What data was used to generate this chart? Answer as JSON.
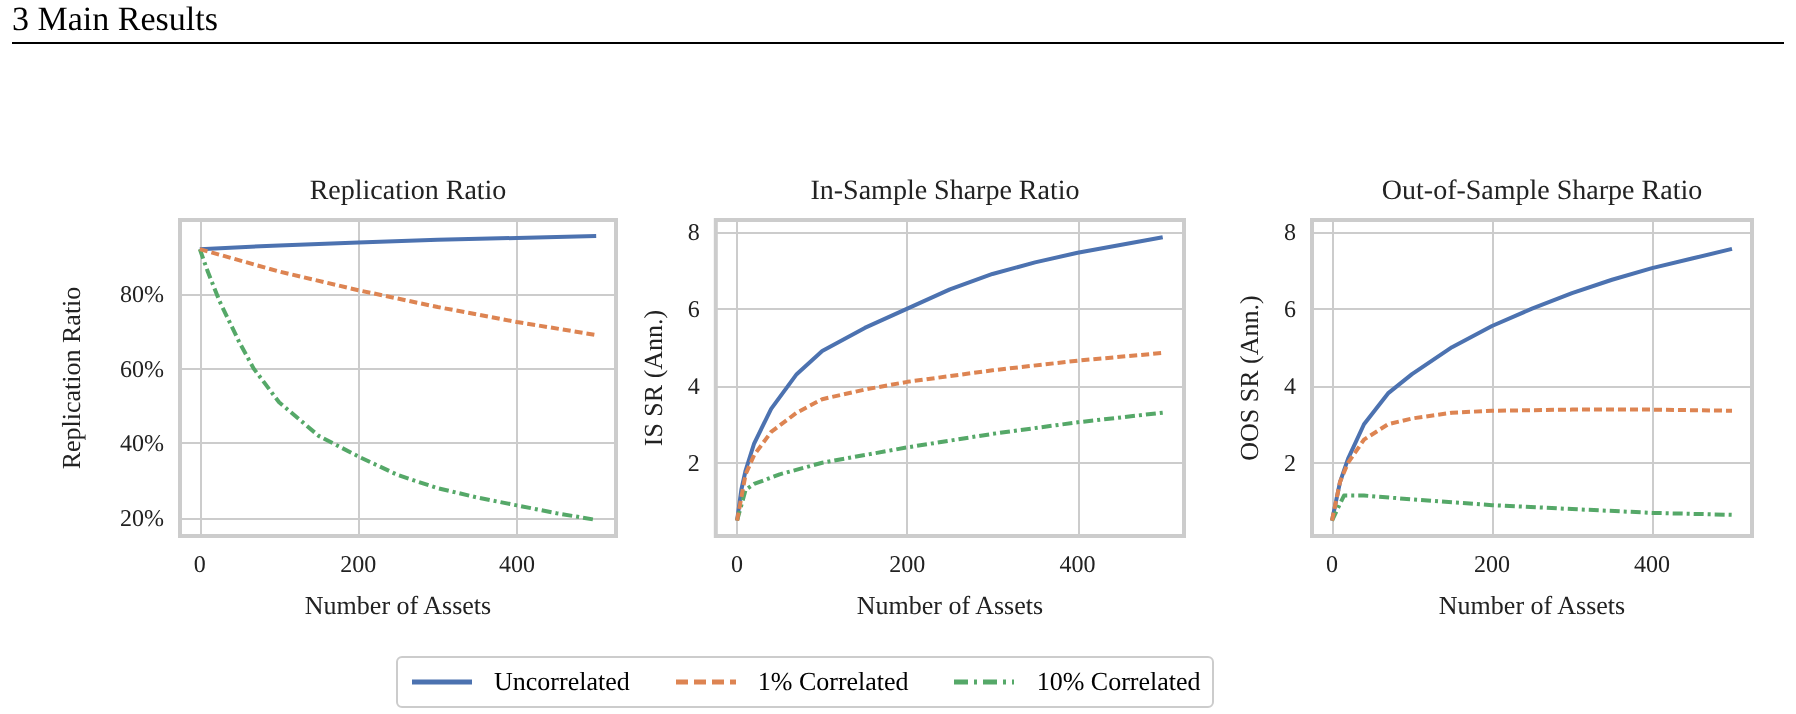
{
  "chart_data": [
    {
      "type": "line",
      "title": "Replication Ratio",
      "xlabel": "Number of Assets",
      "ylabel": "Replication Ratio",
      "annotations": [
        "3 Main Results"
      ],
      "legend": "bottom",
      "grid": true,
      "xlim": [
        -25,
        525
      ],
      "xticks": [
        0,
        200,
        400
      ],
      "ylim": [
        15.2,
        99.8
      ],
      "yticks": [
        {
          "value": 20,
          "label": "20%"
        },
        {
          "value": 40,
          "label": "40%"
        },
        {
          "value": 60,
          "label": "60%"
        },
        {
          "value": 80,
          "label": "80%"
        }
      ],
      "series": [
        {
          "name": "Uncorrelated",
          "color": "#4c72b0",
          "line_style": "solid",
          "x": [
            0,
            100,
            200,
            300,
            400,
            500
          ],
          "values": [
            92,
            93,
            93.8,
            94.5,
            95,
            95.5
          ]
        },
        {
          "name": "1% Correlated",
          "color": "#dd8452",
          "line_style": "dashed",
          "x": [
            0,
            100,
            200,
            300,
            400,
            500
          ],
          "values": [
            92,
            86,
            81,
            76.5,
            72.5,
            69
          ]
        },
        {
          "name": "10% Correlated",
          "color": "#55a868",
          "line_style": "dashdot",
          "x": [
            0,
            10,
            25,
            50,
            68,
            100,
            150,
            200,
            250,
            300,
            350,
            400,
            450,
            500
          ],
          "values": [
            92,
            86,
            78,
            67,
            60,
            51,
            42,
            36.5,
            31.5,
            28,
            25.5,
            23.4,
            21.3,
            19.5
          ]
        }
      ]
    },
    {
      "type": "line",
      "title": "In-Sample Sharpe Ratio",
      "xlabel": "Number of Assets",
      "ylabel": "IS SR (Ann.)",
      "grid": true,
      "xlim": [
        -25,
        525
      ],
      "xticks": [
        0,
        200,
        400
      ],
      "ylim": [
        0.1,
        8.3
      ],
      "yticks": [
        2,
        4,
        6,
        8
      ],
      "series": [
        {
          "color": "#4c72b0",
          "line_style": "solid",
          "x": [
            0,
            5,
            10,
            20,
            40,
            70,
            100,
            150,
            200,
            250,
            300,
            350,
            400,
            450,
            500
          ],
          "values": [
            0.5,
            1.3,
            1.8,
            2.5,
            3.4,
            4.3,
            4.9,
            5.5,
            6.0,
            6.5,
            6.9,
            7.2,
            7.45,
            7.65,
            7.85
          ]
        },
        {
          "color": "#dd8452",
          "line_style": "dashed",
          "x": [
            0,
            10,
            20,
            40,
            70,
            100,
            150,
            200,
            300,
            400,
            500
          ],
          "values": [
            0.5,
            1.7,
            2.2,
            2.8,
            3.3,
            3.65,
            3.9,
            4.1,
            4.4,
            4.65,
            4.85
          ]
        },
        {
          "color": "#55a868",
          "line_style": "dashdot",
          "x": [
            0,
            10,
            20,
            50,
            100,
            150,
            200,
            300,
            400,
            500
          ],
          "values": [
            0.5,
            1.3,
            1.45,
            1.7,
            2.0,
            2.2,
            2.4,
            2.75,
            3.05,
            3.3
          ]
        }
      ]
    },
    {
      "type": "line",
      "title": "Out-of-Sample Sharpe Ratio",
      "xlabel": "Number of Assets",
      "ylabel": "OOS SR (Ann.)",
      "grid": true,
      "xlim": [
        -25,
        525
      ],
      "xticks": [
        0,
        200,
        400
      ],
      "ylim": [
        0.1,
        8.3
      ],
      "yticks": [
        2,
        4,
        6,
        8
      ],
      "series": [
        {
          "color": "#4c72b0",
          "line_style": "solid",
          "x": [
            0,
            10,
            20,
            40,
            70,
            100,
            150,
            200,
            250,
            300,
            350,
            400,
            450,
            500
          ],
          "values": [
            0.5,
            1.5,
            2.1,
            3.0,
            3.8,
            4.3,
            5.0,
            5.55,
            6.0,
            6.4,
            6.75,
            7.05,
            7.3,
            7.55
          ]
        },
        {
          "color": "#dd8452",
          "line_style": "dashed",
          "x": [
            0,
            10,
            20,
            40,
            70,
            100,
            150,
            200,
            300,
            400,
            500
          ],
          "values": [
            0.5,
            1.5,
            2.0,
            2.6,
            3.0,
            3.15,
            3.3,
            3.35,
            3.38,
            3.38,
            3.35
          ]
        },
        {
          "color": "#55a868",
          "line_style": "dashdot",
          "x": [
            0,
            15,
            40,
            100,
            200,
            300,
            400,
            500
          ],
          "values": [
            0.5,
            1.15,
            1.15,
            1.05,
            0.9,
            0.8,
            0.7,
            0.65
          ]
        }
      ]
    }
  ]
}
